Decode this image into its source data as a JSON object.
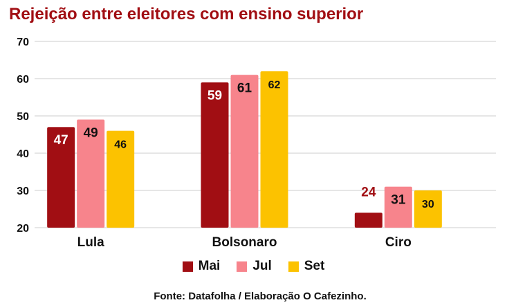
{
  "chart_data": {
    "type": "bar",
    "title": "Rejeição entre eleitores com ensino superior",
    "categories": [
      "Lula",
      "Bolsonaro",
      "Ciro"
    ],
    "series": [
      {
        "name": "Mai",
        "values": [
          47,
          59,
          24
        ],
        "color": "#a10e13"
      },
      {
        "name": "Jul",
        "values": [
          49,
          61,
          31
        ],
        "color": "#f7848c"
      },
      {
        "name": "Set",
        "values": [
          46,
          62,
          30
        ],
        "color": "#fcc200"
      }
    ],
    "ylim": [
      20,
      70
    ],
    "yticks": [
      20,
      30,
      40,
      50,
      60,
      70
    ],
    "grid": true,
    "legend": "bottom",
    "xlabel": "",
    "ylabel": ""
  },
  "source": "Fonte: Datafolha / Elaboração O Cafezinho."
}
